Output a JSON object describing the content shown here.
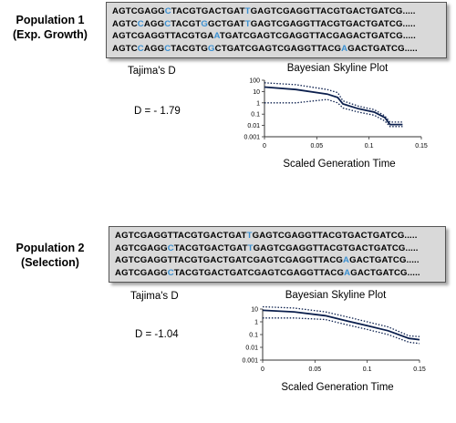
{
  "colors": {
    "highlight": "#3a8fd0",
    "median_line": "#0b1f4d",
    "box_bg": "#d9d9d9"
  },
  "panels": [
    {
      "label_line1": "Population 1",
      "label_line2": "(Exp. Growth)",
      "sequences": [
        [
          [
            "AGTCGAGG",
            0
          ],
          [
            "C",
            1
          ],
          [
            "TACGTGACTGAT",
            0
          ],
          [
            "T",
            1
          ],
          [
            "GAGTCGAGGTTACGTGACTGATCG.....",
            0
          ]
        ],
        [
          [
            "AGTC",
            0
          ],
          [
            "C",
            1
          ],
          [
            "AGG",
            0
          ],
          [
            "C",
            1
          ],
          [
            "TACGT",
            0
          ],
          [
            "G",
            1
          ],
          [
            "GCTGAT",
            0
          ],
          [
            "T",
            1
          ],
          [
            "GAGTCGAGGTTACGTGACTGATCG.....",
            0
          ]
        ],
        [
          [
            "AGTCGAGGTTACGTGA",
            0
          ],
          [
            "A",
            1
          ],
          [
            "TGATCGAGTCGAGGTTACGAGACTGATCG.....",
            0
          ]
        ],
        [
          [
            "AGTC",
            0
          ],
          [
            "C",
            1
          ],
          [
            "AGG",
            0
          ],
          [
            "C",
            1
          ],
          [
            "TACGTG",
            0
          ],
          [
            "G",
            1
          ],
          [
            "CTGATCGAGTCGAGGTTACG",
            0
          ],
          [
            "A",
            1
          ],
          [
            "GACTGATCG.....",
            0
          ]
        ]
      ],
      "tajima_label": "Tajima's D",
      "tajima_value": "D = - 1.79",
      "chart_data": {
        "type": "line",
        "title": "Bayesian Skyline Plot",
        "xlabel": "Scaled Generation Time",
        "ylabel": "",
        "yscale": "log",
        "xlim": [
          0,
          0.15
        ],
        "ylim": [
          0.001,
          100
        ],
        "x_ticks": [
          "0",
          "0.05",
          "0.1",
          "0.15"
        ],
        "y_ticks": [
          "0.001",
          "0.01",
          "0.1",
          "1",
          "10",
          "100"
        ],
        "median": [
          [
            0,
            25
          ],
          [
            0.03,
            15
          ],
          [
            0.06,
            6
          ],
          [
            0.07,
            3
          ],
          [
            0.075,
            0.8
          ],
          [
            0.09,
            0.3
          ],
          [
            0.105,
            0.15
          ],
          [
            0.115,
            0.05
          ],
          [
            0.12,
            0.012
          ],
          [
            0.132,
            0.012
          ]
        ],
        "upper": [
          [
            0,
            60
          ],
          [
            0.03,
            40
          ],
          [
            0.06,
            15
          ],
          [
            0.07,
            8
          ],
          [
            0.075,
            1.5
          ],
          [
            0.09,
            0.5
          ],
          [
            0.105,
            0.25
          ],
          [
            0.115,
            0.07
          ],
          [
            0.12,
            0.02
          ],
          [
            0.132,
            0.02
          ]
        ],
        "lower": [
          [
            0,
            1
          ],
          [
            0.03,
            1
          ],
          [
            0.06,
            2
          ],
          [
            0.07,
            1
          ],
          [
            0.075,
            0.35
          ],
          [
            0.09,
            0.15
          ],
          [
            0.105,
            0.08
          ],
          [
            0.115,
            0.025
          ],
          [
            0.12,
            0.008
          ],
          [
            0.132,
            0.008
          ]
        ]
      }
    },
    {
      "label_line1": "Population 2",
      "label_line2": "(Selection)",
      "sequences": [
        [
          [
            "AGTCGAGGTTACGTGACTGAT",
            0
          ],
          [
            "T",
            1
          ],
          [
            "GAGTCGAGGTTACGTGACTGATCG.....",
            0
          ]
        ],
        [
          [
            "AGTCGAGG",
            0
          ],
          [
            "C",
            1
          ],
          [
            "TACGTGACTGAT",
            0
          ],
          [
            "T",
            1
          ],
          [
            "GAGTCGAGGTTACGTGACTGATCG.....",
            0
          ]
        ],
        [
          [
            "AGTCGAGGTTACGTGACTGATCGAGTCGAGGTTACG",
            0
          ],
          [
            "A",
            1
          ],
          [
            "GACTGATCG.....",
            0
          ]
        ],
        [
          [
            "AGTCGAGG",
            0
          ],
          [
            "C",
            1
          ],
          [
            "TACGTGACTGATCGAGTCGAGGTTACG",
            0
          ],
          [
            "A",
            1
          ],
          [
            "GACTGATCG.....",
            0
          ]
        ]
      ],
      "tajima_label": "Tajima's D",
      "tajima_value": "D = -1.04",
      "chart_data": {
        "type": "line",
        "title": "Bayesian Skyline Plot",
        "xlabel": "Scaled Generation Time",
        "ylabel": "",
        "yscale": "log",
        "xlim": [
          0,
          0.15
        ],
        "ylim": [
          0.001,
          10
        ],
        "x_ticks": [
          "0",
          "0.05",
          "0.1",
          "0.15"
        ],
        "y_ticks": [
          "0.001",
          "0.01",
          "0.1",
          "1",
          "10"
        ],
        "median": [
          [
            0,
            8
          ],
          [
            0.03,
            6
          ],
          [
            0.06,
            3
          ],
          [
            0.08,
            1.2
          ],
          [
            0.1,
            0.5
          ],
          [
            0.12,
            0.2
          ],
          [
            0.14,
            0.05
          ],
          [
            0.15,
            0.04
          ]
        ],
        "upper": [
          [
            0,
            15
          ],
          [
            0.03,
            12
          ],
          [
            0.06,
            6
          ],
          [
            0.08,
            2.5
          ],
          [
            0.1,
            1
          ],
          [
            0.12,
            0.4
          ],
          [
            0.14,
            0.08
          ],
          [
            0.15,
            0.07
          ]
        ],
        "lower": [
          [
            0,
            2
          ],
          [
            0.03,
            2
          ],
          [
            0.06,
            1.5
          ],
          [
            0.08,
            0.6
          ],
          [
            0.1,
            0.25
          ],
          [
            0.12,
            0.1
          ],
          [
            0.14,
            0.025
          ],
          [
            0.15,
            0.02
          ]
        ]
      }
    }
  ]
}
